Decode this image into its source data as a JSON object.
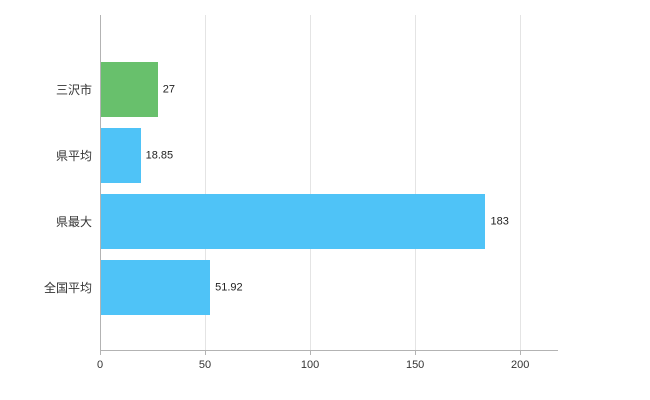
{
  "chart_data": {
    "type": "bar",
    "orientation": "horizontal",
    "title": "",
    "xlabel": "",
    "ylabel": "",
    "categories": [
      "三沢市",
      "県平均",
      "県最大",
      "全国平均"
    ],
    "values": [
      27,
      18.85,
      183,
      51.92
    ],
    "value_labels": [
      "27",
      "18.85",
      "183",
      "51.92"
    ],
    "bar_colors": [
      "#68c06c",
      "#4fc3f7",
      "#4fc3f7",
      "#4fc3f7"
    ],
    "xticks": [
      0,
      50,
      100,
      150,
      200
    ],
    "xtick_labels": [
      "0",
      "50",
      "100",
      "150",
      "200"
    ],
    "xlim": [
      0,
      218
    ],
    "grid": true,
    "legend": false
  },
  "colors": {
    "highlight_bar": "#68c06c",
    "default_bar": "#4fc3f7",
    "axis": "#b3b3b3",
    "gridline": "#e4e4e4",
    "text": "#333333",
    "background": "#ffffff"
  }
}
